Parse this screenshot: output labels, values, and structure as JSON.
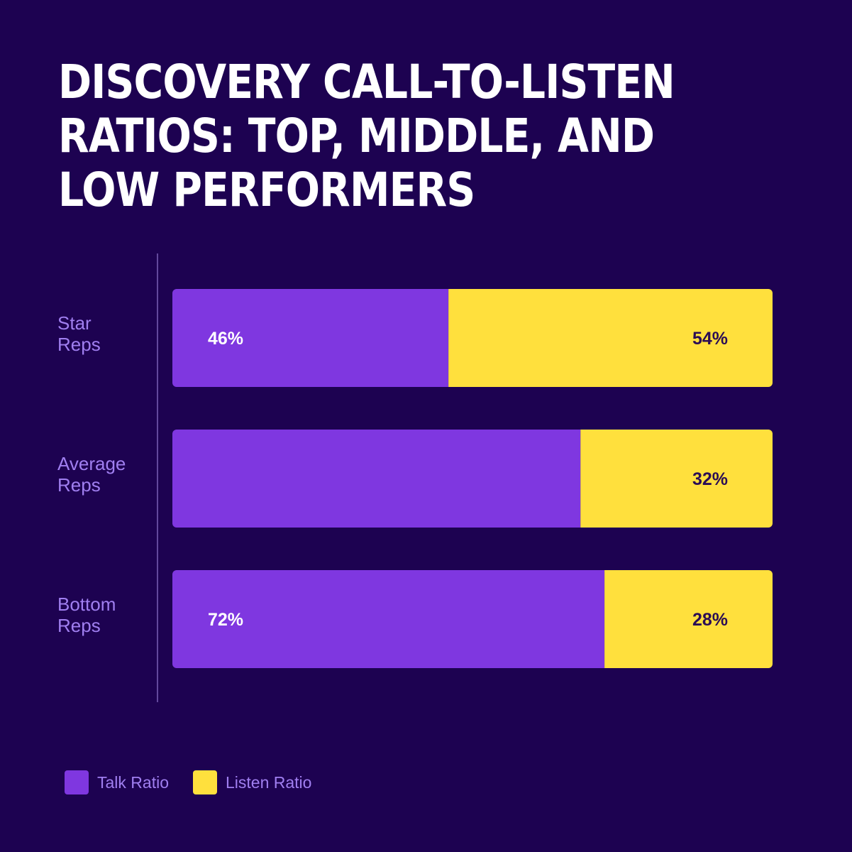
{
  "chart_data": {
    "type": "bar",
    "orientation": "horizontal",
    "stacked": true,
    "title": "DISCOVERY CALL-TO-LISTEN RATIOS: TOP, MIDDLE, AND LOW PERFORMERS",
    "categories": [
      [
        "Star",
        "Reps"
      ],
      [
        "Average",
        "Reps"
      ],
      [
        "Bottom",
        "Reps"
      ]
    ],
    "series": [
      {
        "name": "Talk Ratio",
        "values": [
          46,
          68,
          72
        ],
        "labels": [
          "46%",
          "",
          "72%"
        ],
        "color": "#7f37e0",
        "label_color": "#ffffff"
      },
      {
        "name": "Listen Ratio",
        "values": [
          54,
          32,
          28
        ],
        "labels": [
          "54%",
          "32%",
          "28%"
        ],
        "color": "#ffe03d",
        "label_color": "#2b0d55"
      }
    ],
    "xlim": [
      0,
      100
    ],
    "grid": false,
    "legend": "bottom-left"
  },
  "colors": {
    "background": "#1d0251",
    "category_label": "#a07ff0",
    "axis_line": "#7a5fb5"
  }
}
